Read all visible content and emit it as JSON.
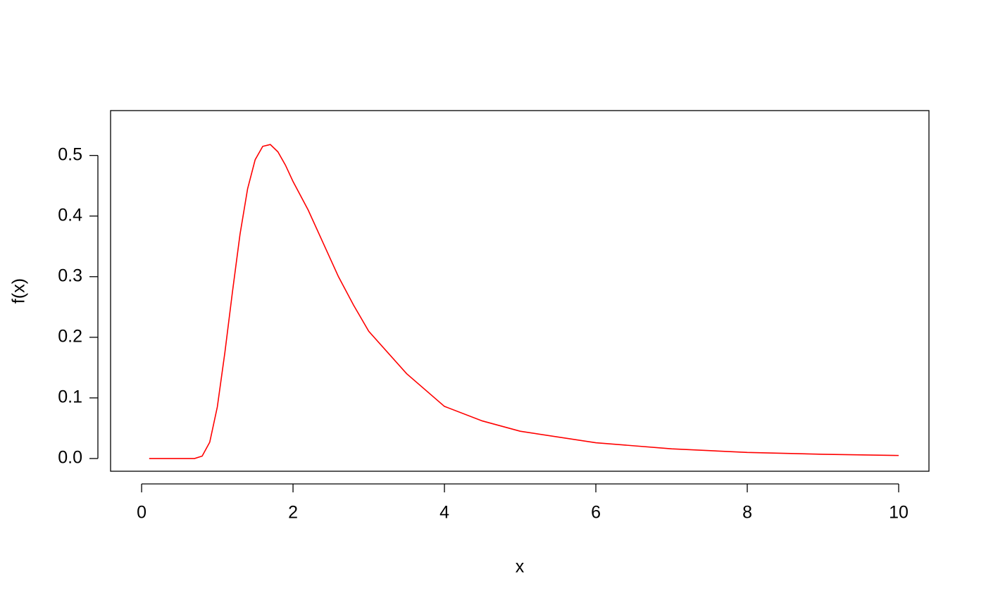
{
  "chart_data": {
    "type": "line",
    "xlabel": "x",
    "ylabel": "f(x)",
    "x": [
      0.1,
      0.2,
      0.3,
      0.4,
      0.5,
      0.6,
      0.7,
      0.8,
      0.9,
      1.0,
      1.1,
      1.2,
      1.3,
      1.4,
      1.5,
      1.6,
      1.7,
      1.8,
      1.9,
      2.0,
      2.2,
      2.4,
      2.6,
      2.8,
      3.0,
      3.5,
      4.0,
      4.5,
      5.0,
      6.0,
      7.0,
      8.0,
      9.0,
      10.0
    ],
    "series": [
      {
        "color": "#ff0000",
        "values": [
          0,
          0,
          0,
          0,
          0,
          0,
          0,
          0.004,
          0.027,
          0.085,
          0.175,
          0.275,
          0.37,
          0.445,
          0.493,
          0.515,
          0.518,
          0.506,
          0.484,
          0.457,
          0.41,
          0.355,
          0.3,
          0.253,
          0.21,
          0.14,
          0.086,
          0.062,
          0.045,
          0.026,
          0.016,
          0.01,
          0.007,
          0.005
        ]
      }
    ],
    "xlim": [
      -0.41,
      10.4
    ],
    "ylim": [
      -0.021,
      0.574
    ],
    "xticks": [
      0,
      2,
      4,
      6,
      8,
      10
    ],
    "yticks": [
      {
        "value": 0,
        "label": "0.0"
      },
      0.1,
      0.2,
      0.3,
      0.4,
      0.5
    ]
  }
}
